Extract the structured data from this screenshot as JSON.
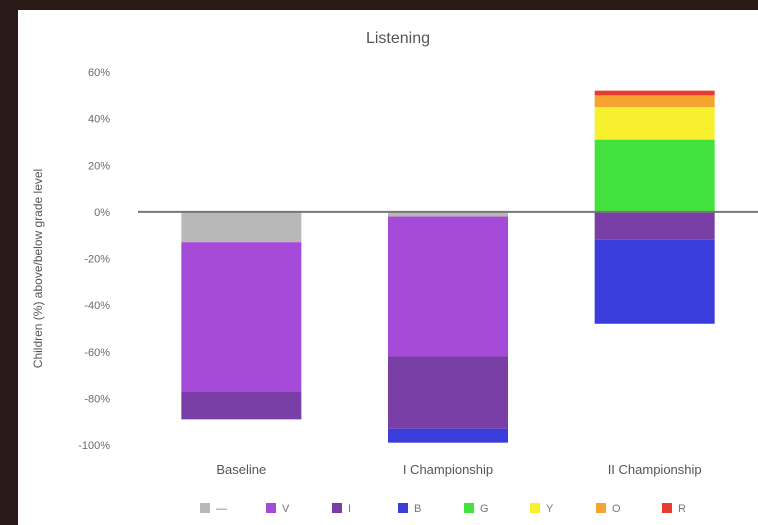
{
  "chart_data": {
    "type": "bar",
    "stacked": true,
    "title": "Listening",
    "ylabel": "Children (%) above/below grade level",
    "xlabel": "",
    "categories": [
      "Baseline",
      "I Championship",
      "II Championship"
    ],
    "ylim": [
      -100,
      60
    ],
    "yticks": [
      60,
      40,
      20,
      0,
      -20,
      -40,
      -60,
      -80,
      -100
    ],
    "ytick_labels": [
      "60%",
      "40%",
      "20%",
      "0%",
      "-20%",
      "-40%",
      "-60%",
      "-80%",
      "-100%"
    ],
    "grid": false,
    "zero_line": true,
    "legend_position": "bottom",
    "series": [
      {
        "name": "—",
        "color": "#b8b8b8",
        "values": [
          -13,
          -2,
          0
        ]
      },
      {
        "name": "V",
        "color": "#a64bd9",
        "values": [
          -64,
          -60,
          0
        ]
      },
      {
        "name": "I",
        "color": "#7a3fa6",
        "values": [
          -12,
          -31,
          -12
        ]
      },
      {
        "name": "B",
        "color": "#3a3ddb",
        "values": [
          0,
          -6,
          -36
        ]
      },
      {
        "name": "G",
        "color": "#44e23e",
        "values": [
          0,
          0,
          31
        ]
      },
      {
        "name": "Y",
        "color": "#f6f02f",
        "values": [
          0,
          0,
          14
        ]
      },
      {
        "name": "O",
        "color": "#f5a331",
        "values": [
          0,
          0,
          5
        ]
      },
      {
        "name": "R",
        "color": "#e83c2e",
        "values": [
          0,
          0,
          2
        ]
      }
    ]
  }
}
